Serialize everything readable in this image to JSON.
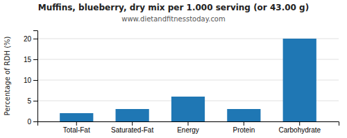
{
  "chart_data": {
    "type": "bar",
    "title": "Muffins, blueberry, dry mix per 1.000 serving (or 43.00 g)",
    "subtitle": "www.dietandfitnesstoday.com",
    "categories": [
      "Total-Fat",
      "Saturated-Fat",
      "Energy",
      "Protein",
      "Carbohydrate"
    ],
    "values": [
      2,
      3,
      6,
      3,
      20
    ],
    "ylabel": "Percentage of RDH (%)",
    "ylim": [
      0,
      22
    ],
    "yticks": [
      0,
      5,
      10,
      15,
      20
    ],
    "grid": true
  }
}
